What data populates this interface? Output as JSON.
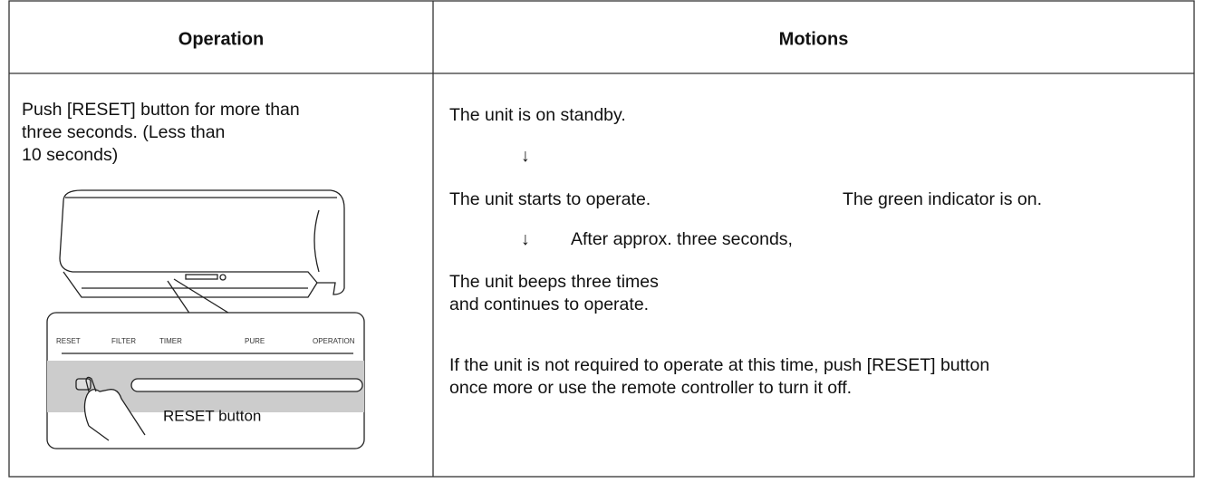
{
  "table": {
    "headers": [
      "Operation",
      "Motions"
    ],
    "operation": {
      "lines": [
        "Push [RESET] button for more than",
        "three seconds. (Less than",
        "10 seconds)"
      ],
      "panel_labels": [
        "RESET",
        "FILTER",
        "TIMER",
        "PURE",
        "OPERATION"
      ],
      "callout": "RESET button"
    },
    "motions": {
      "standby": "The unit is on standby.",
      "arrow_1": "↓",
      "starts": "The unit starts to operate.",
      "indicator": "The green indicator is on.",
      "arrow_2": "↓",
      "after": "After approx. three seconds,",
      "beeps": [
        "The unit beeps three times",
        "and continues to operate."
      ],
      "note": [
        "If the unit is not required to operate at this time, push [RESET] button",
        "once more or use the remote controller to turn it off."
      ]
    }
  }
}
